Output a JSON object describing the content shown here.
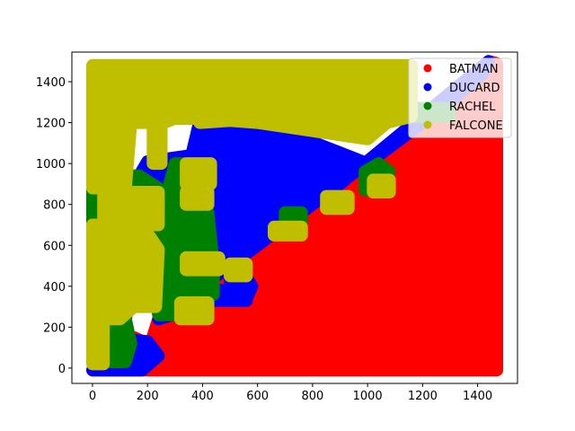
{
  "chart_data": {
    "type": "scatter",
    "title": "",
    "xlabel": "",
    "ylabel": "",
    "xlim": [
      -75,
      1545
    ],
    "ylim": [
      -75,
      1545
    ],
    "xticks": [
      0,
      200,
      400,
      600,
      800,
      1000,
      1200,
      1400
    ],
    "yticks": [
      0,
      200,
      400,
      600,
      800,
      1000,
      1200,
      1400
    ],
    "grid": false,
    "legend_position": "top-right",
    "series": [
      {
        "name": "BATMAN",
        "color": "#ff0000",
        "regions": [
          [
            [
              0,
              -10
            ],
            [
              1470,
              -10
            ],
            [
              1470,
              1490
            ],
            [
              1440,
              1500
            ],
            [
              900,
              900
            ],
            [
              500,
              500
            ],
            [
              240,
              240
            ],
            [
              180,
              -10
            ]
          ],
          [
            [
              120,
              80
            ],
            [
              200,
              80
            ],
            [
              200,
              120
            ],
            [
              150,
              150
            ],
            [
              120,
              120
            ]
          ]
        ]
      },
      {
        "name": "DUCARD",
        "color": "#0000ff",
        "regions": [
          [
            [
              60,
              240
            ],
            [
              120,
              240
            ],
            [
              140,
              370
            ],
            [
              220,
              380
            ],
            [
              260,
              400
            ],
            [
              320,
              360
            ],
            [
              290,
              260
            ],
            [
              240,
              240
            ],
            [
              500,
              500
            ],
            [
              900,
              900
            ],
            [
              1440,
              1500
            ],
            [
              1420,
              1440
            ],
            [
              1260,
              1260
            ],
            [
              1000,
              1000
            ],
            [
              600,
              1210
            ],
            [
              390,
              1210
            ],
            [
              360,
              1040
            ],
            [
              200,
              1010
            ],
            [
              170,
              940
            ],
            [
              240,
              880
            ],
            [
              220,
              720
            ],
            [
              110,
              700
            ],
            [
              90,
              580
            ],
            [
              60,
              500
            ]
          ],
          [
            [
              500,
              340
            ],
            [
              560,
              340
            ],
            [
              580,
              400
            ],
            [
              560,
              440
            ],
            [
              500,
              440
            ]
          ],
          [
            [
              440,
              330
            ],
            [
              560,
              330
            ],
            [
              560,
              380
            ],
            [
              440,
              380
            ]
          ],
          [
            [
              0,
              -10
            ],
            [
              180,
              -10
            ],
            [
              240,
              60
            ],
            [
              200,
              130
            ],
            [
              120,
              140
            ],
            [
              80,
              60
            ],
            [
              30,
              0
            ]
          ],
          [
            [
              1000,
              920
            ],
            [
              1060,
              920
            ],
            [
              1060,
              980
            ],
            [
              1000,
              980
            ]
          ]
        ]
      },
      {
        "name": "RACHEL",
        "color": "#008000",
        "regions": [
          [
            [
              0,
              700
            ],
            [
              110,
              700
            ],
            [
              220,
              720
            ],
            [
              240,
              880
            ],
            [
              170,
              940
            ],
            [
              60,
              940
            ],
            [
              40,
              1000
            ],
            [
              0,
              1000
            ]
          ],
          [
            [
              240,
              260
            ],
            [
              320,
              260
            ],
            [
              360,
              300
            ],
            [
              440,
              360
            ],
            [
              440,
              500
            ],
            [
              420,
              760
            ],
            [
              390,
              900
            ],
            [
              330,
              1000
            ],
            [
              300,
              1000
            ],
            [
              280,
              900
            ],
            [
              260,
              760
            ],
            [
              240,
              560
            ],
            [
              220,
              400
            ]
          ],
          [
            [
              990,
              870
            ],
            [
              1050,
              870
            ],
            [
              1080,
              960
            ],
            [
              1040,
              1000
            ],
            [
              990,
              960
            ]
          ],
          [
            [
              1140,
              1230
            ],
            [
              1300,
              1230
            ],
            [
              1300,
              1270
            ],
            [
              1140,
              1270
            ]
          ],
          [
            [
              700,
              700
            ],
            [
              760,
              700
            ],
            [
              760,
              760
            ],
            [
              700,
              760
            ]
          ],
          [
            [
              40,
              30
            ],
            [
              120,
              30
            ],
            [
              140,
              120
            ],
            [
              120,
              240
            ],
            [
              40,
              240
            ]
          ]
        ]
      },
      {
        "name": "FALCONE",
        "color": "#bfbf00",
        "regions": [
          [
            [
              0,
              1200
            ],
            [
              0,
              1480
            ],
            [
              1160,
              1480
            ],
            [
              1160,
              1230
            ],
            [
              1070,
              1200
            ],
            [
              1000,
              1120
            ],
            [
              600,
              1200
            ],
            [
              500,
              1210
            ],
            [
              390,
              1200
            ],
            [
              380,
              1220
            ],
            [
              300,
              1220
            ],
            [
              260,
              1200
            ]
          ],
          [
            [
              0,
              880
            ],
            [
              120,
              880
            ],
            [
              140,
              1200
            ],
            [
              0,
              1200
            ]
          ],
          [
            [
              0,
              20
            ],
            [
              40,
              20
            ],
            [
              40,
              240
            ],
            [
              100,
              240
            ],
            [
              150,
              300
            ],
            [
              140,
              380
            ],
            [
              110,
              500
            ],
            [
              100,
              700
            ],
            [
              0,
              700
            ]
          ],
          [
            [
              0,
              300
            ],
            [
              230,
              300
            ],
            [
              240,
              580
            ],
            [
              180,
              700
            ],
            [
              0,
              700
            ]
          ],
          [
            [
              40,
              700
            ],
            [
              240,
              700
            ],
            [
              240,
              860
            ],
            [
              40,
              860
            ]
          ],
          [
            [
              220,
              1000
            ],
            [
              250,
              1000
            ],
            [
              250,
              1200
            ],
            [
              220,
              1200
            ]
          ],
          [
            [
              340,
              800
            ],
            [
              420,
              800
            ],
            [
              420,
              860
            ],
            [
              340,
              860
            ]
          ],
          [
            [
              340,
              480
            ],
            [
              460,
              480
            ],
            [
              460,
              540
            ],
            [
              340,
              540
            ]
          ],
          [
            [
              320,
              240
            ],
            [
              420,
              240
            ],
            [
              420,
              320
            ],
            [
              320,
              320
            ]
          ],
          [
            [
              500,
              450
            ],
            [
              560,
              450
            ],
            [
              560,
              510
            ],
            [
              500,
              510
            ]
          ],
          [
            [
              660,
              650
            ],
            [
              760,
              650
            ],
            [
              760,
              690
            ],
            [
              660,
              690
            ]
          ],
          [
            [
              850,
              780
            ],
            [
              930,
              780
            ],
            [
              930,
              840
            ],
            [
              850,
              840
            ]
          ],
          [
            [
              1020,
              860
            ],
            [
              1080,
              860
            ],
            [
              1080,
              920
            ],
            [
              1020,
              920
            ]
          ],
          [
            [
              340,
              900
            ],
            [
              430,
              900
            ],
            [
              430,
              1000
            ],
            [
              340,
              1000
            ]
          ]
        ]
      }
    ]
  }
}
